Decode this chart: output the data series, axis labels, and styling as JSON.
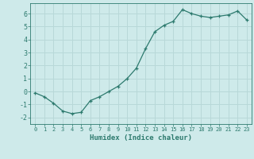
{
  "x": [
    0,
    1,
    2,
    3,
    4,
    5,
    6,
    7,
    8,
    9,
    10,
    11,
    12,
    13,
    14,
    15,
    16,
    17,
    18,
    19,
    20,
    21,
    22,
    23
  ],
  "y": [
    -0.1,
    -0.4,
    -0.9,
    -1.5,
    -1.7,
    -1.6,
    -0.7,
    -0.4,
    0.0,
    0.4,
    1.0,
    1.8,
    3.3,
    4.6,
    5.1,
    5.4,
    6.3,
    6.0,
    5.8,
    5.7,
    5.8,
    5.9,
    6.2,
    5.5
  ],
  "xlabel": "Humidex (Indice chaleur)",
  "xlim": [
    -0.5,
    23.5
  ],
  "ylim": [
    -2.5,
    6.8
  ],
  "yticks": [
    -2,
    -1,
    0,
    1,
    2,
    3,
    4,
    5,
    6
  ],
  "xtick_labels": [
    "0",
    "1",
    "2",
    "3",
    "4",
    "5",
    "6",
    "7",
    "8",
    "9",
    "10",
    "11",
    "12",
    "13",
    "14",
    "15",
    "16",
    "17",
    "18",
    "19",
    "20",
    "21",
    "22",
    "23"
  ],
  "line_color": "#2d7a6e",
  "marker": "+",
  "bg_color": "#ceeaea",
  "grid_color": "#b8d8d8",
  "font_color": "#2d7a6e"
}
